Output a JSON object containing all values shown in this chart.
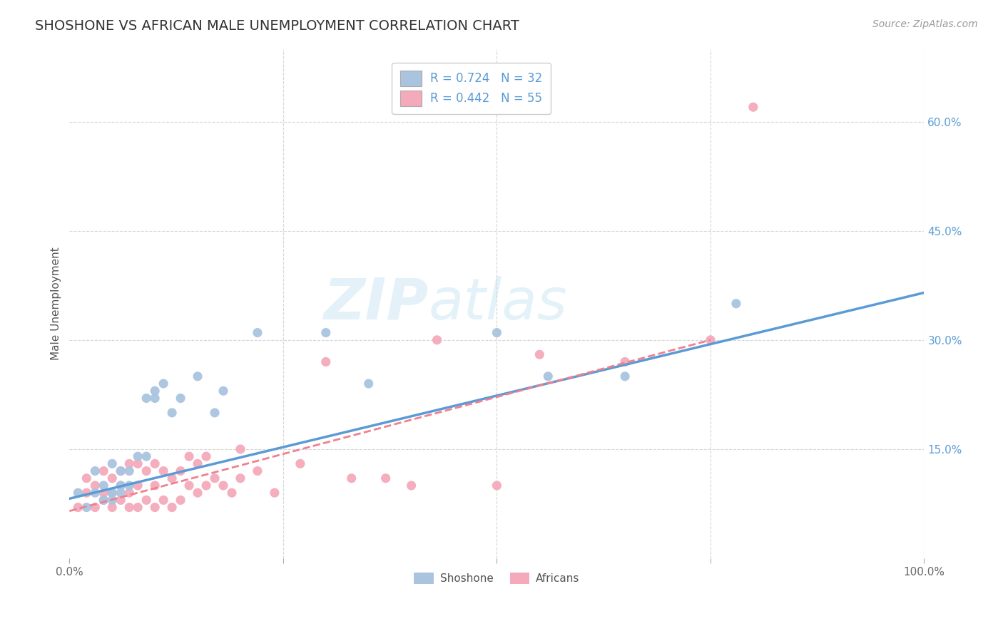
{
  "title": "SHOSHONE VS AFRICAN MALE UNEMPLOYMENT CORRELATION CHART",
  "source": "Source: ZipAtlas.com",
  "ylabel": "Male Unemployment",
  "xlim": [
    0,
    1.0
  ],
  "ylim": [
    0,
    0.7
  ],
  "xticks": [
    0.0,
    0.25,
    0.5,
    0.75,
    1.0
  ],
  "xticklabels": [
    "0.0%",
    "",
    "",
    "",
    "100.0%"
  ],
  "yticks_right": [
    0.0,
    0.15,
    0.3,
    0.45,
    0.6
  ],
  "yticklabels_right": [
    "",
    "15.0%",
    "30.0%",
    "45.0%",
    "60.0%"
  ],
  "shoshone_R": 0.724,
  "shoshone_N": 32,
  "africans_R": 0.442,
  "africans_N": 55,
  "shoshone_color": "#aac4e0",
  "africans_color": "#f4aabb",
  "shoshone_line_color": "#5b9bd5",
  "africans_line_color": "#f08090",
  "grid_color": "#cccccc",
  "watermark": "ZIPatlas",
  "shoshone_line_x0": 0.0,
  "shoshone_line_y0": 0.082,
  "shoshone_line_x1": 1.0,
  "shoshone_line_y1": 0.365,
  "africans_line_x0": 0.0,
  "africans_line_y0": 0.065,
  "africans_line_x1": 0.75,
  "africans_line_y1": 0.3,
  "shoshone_x": [
    0.01,
    0.02,
    0.03,
    0.03,
    0.04,
    0.04,
    0.05,
    0.05,
    0.05,
    0.06,
    0.06,
    0.06,
    0.07,
    0.07,
    0.08,
    0.09,
    0.09,
    0.1,
    0.1,
    0.11,
    0.12,
    0.13,
    0.15,
    0.17,
    0.18,
    0.22,
    0.3,
    0.35,
    0.5,
    0.56,
    0.65,
    0.78
  ],
  "shoshone_y": [
    0.09,
    0.07,
    0.09,
    0.12,
    0.08,
    0.1,
    0.08,
    0.09,
    0.13,
    0.09,
    0.1,
    0.12,
    0.1,
    0.12,
    0.14,
    0.14,
    0.22,
    0.22,
    0.23,
    0.24,
    0.2,
    0.22,
    0.25,
    0.2,
    0.23,
    0.31,
    0.31,
    0.24,
    0.31,
    0.25,
    0.25,
    0.35
  ],
  "africans_x": [
    0.01,
    0.02,
    0.02,
    0.03,
    0.03,
    0.04,
    0.04,
    0.04,
    0.05,
    0.05,
    0.05,
    0.06,
    0.06,
    0.06,
    0.07,
    0.07,
    0.07,
    0.08,
    0.08,
    0.08,
    0.09,
    0.09,
    0.1,
    0.1,
    0.1,
    0.11,
    0.11,
    0.12,
    0.12,
    0.13,
    0.13,
    0.14,
    0.14,
    0.15,
    0.15,
    0.16,
    0.16,
    0.17,
    0.18,
    0.19,
    0.2,
    0.2,
    0.22,
    0.24,
    0.27,
    0.3,
    0.33,
    0.37,
    0.4,
    0.43,
    0.5,
    0.55,
    0.65,
    0.75,
    0.8
  ],
  "africans_y": [
    0.07,
    0.09,
    0.11,
    0.07,
    0.1,
    0.08,
    0.09,
    0.12,
    0.07,
    0.09,
    0.11,
    0.08,
    0.1,
    0.12,
    0.07,
    0.09,
    0.13,
    0.07,
    0.1,
    0.13,
    0.08,
    0.12,
    0.07,
    0.1,
    0.13,
    0.08,
    0.12,
    0.07,
    0.11,
    0.08,
    0.12,
    0.1,
    0.14,
    0.09,
    0.13,
    0.1,
    0.14,
    0.11,
    0.1,
    0.09,
    0.11,
    0.15,
    0.12,
    0.09,
    0.13,
    0.27,
    0.11,
    0.11,
    0.1,
    0.3,
    0.1,
    0.28,
    0.27,
    0.3,
    0.62
  ]
}
